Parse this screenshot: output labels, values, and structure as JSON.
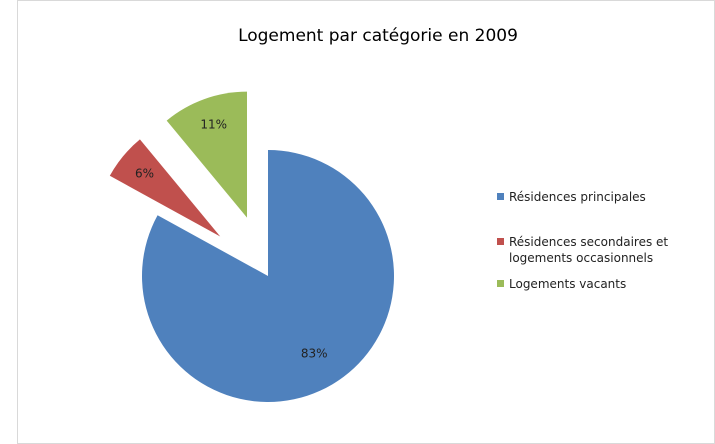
{
  "chart_data": {
    "type": "pie",
    "title": "Logement par catégorie en 2009",
    "categories": [
      "Résidences principales",
      "Résidences secondaires et logements occasionnels",
      "Logements vacants"
    ],
    "values": [
      83,
      6,
      11
    ],
    "value_labels": [
      "83%",
      "6%",
      "11%"
    ],
    "colors": [
      "#4f81bd",
      "#c0504d",
      "#9bbb59"
    ],
    "legend": "right"
  }
}
